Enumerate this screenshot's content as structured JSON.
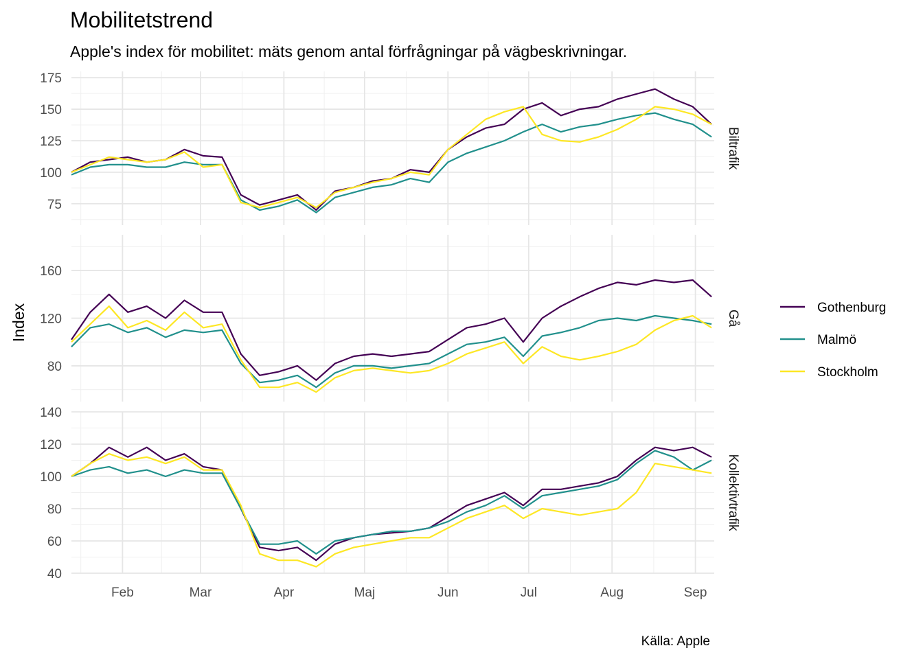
{
  "chart_data": {
    "type": "line",
    "title": "Mobilitetstrend",
    "subtitle": "Apple's index för mobilitet: mäts genom antal förfrågningar på vägbeskrivningar.",
    "ylabel": "Index",
    "xlabel": "",
    "caption": "Källa: Apple",
    "x_range": [
      "2020-01-13",
      "2020-09-08"
    ],
    "x_ticks": [
      {
        "date": "2020-02-01",
        "label": "Feb"
      },
      {
        "date": "2020-03-01",
        "label": "Mar"
      },
      {
        "date": "2020-04-01",
        "label": "Apr"
      },
      {
        "date": "2020-05-01",
        "label": "Maj"
      },
      {
        "date": "2020-06-01",
        "label": "Jun"
      },
      {
        "date": "2020-07-01",
        "label": "Jul"
      },
      {
        "date": "2020-08-01",
        "label": "Aug"
      },
      {
        "date": "2020-09-01",
        "label": "Sep"
      }
    ],
    "legend": {
      "position": "right",
      "entries": [
        {
          "name": "Gothenburg",
          "color": "#440154"
        },
        {
          "name": "Malmö",
          "color": "#21908C"
        },
        {
          "name": "Stockholm",
          "color": "#FDE725"
        }
      ]
    },
    "grid": true,
    "facets": [
      {
        "label": "Biltrafik",
        "ylim": [
          58,
          180
        ],
        "yticks": [
          75,
          100,
          125,
          150,
          175
        ],
        "series": [
          {
            "name": "Gothenburg",
            "color": "#440154",
            "x": [
              "2020-01-13",
              "2020-01-20",
              "2020-01-27",
              "2020-02-03",
              "2020-02-10",
              "2020-02-17",
              "2020-02-24",
              "2020-03-02",
              "2020-03-09",
              "2020-03-16",
              "2020-03-23",
              "2020-03-30",
              "2020-04-06",
              "2020-04-13",
              "2020-04-20",
              "2020-04-27",
              "2020-05-04",
              "2020-05-11",
              "2020-05-18",
              "2020-05-25",
              "2020-06-01",
              "2020-06-08",
              "2020-06-15",
              "2020-06-22",
              "2020-06-29",
              "2020-07-06",
              "2020-07-13",
              "2020-07-20",
              "2020-07-27",
              "2020-08-03",
              "2020-08-10",
              "2020-08-17",
              "2020-08-24",
              "2020-08-31",
              "2020-09-07"
            ],
            "y": [
              100,
              108,
              110,
              112,
              108,
              110,
              118,
              113,
              112,
              82,
              74,
              78,
              82,
              70,
              85,
              88,
              93,
              95,
              102,
              100,
              118,
              128,
              135,
              138,
              150,
              155,
              145,
              150,
              152,
              158,
              162,
              166,
              158,
              152,
              138
            ]
          },
          {
            "name": "Malmö",
            "color": "#21908C",
            "x": [
              "2020-01-13",
              "2020-01-20",
              "2020-01-27",
              "2020-02-03",
              "2020-02-10",
              "2020-02-17",
              "2020-02-24",
              "2020-03-02",
              "2020-03-09",
              "2020-03-16",
              "2020-03-23",
              "2020-03-30",
              "2020-04-06",
              "2020-04-13",
              "2020-04-20",
              "2020-04-27",
              "2020-05-04",
              "2020-05-11",
              "2020-05-18",
              "2020-05-25",
              "2020-06-01",
              "2020-06-08",
              "2020-06-15",
              "2020-06-22",
              "2020-06-29",
              "2020-07-06",
              "2020-07-13",
              "2020-07-20",
              "2020-07-27",
              "2020-08-03",
              "2020-08-10",
              "2020-08-17",
              "2020-08-24",
              "2020-08-31",
              "2020-09-07"
            ],
            "y": [
              98,
              104,
              106,
              106,
              104,
              104,
              108,
              106,
              106,
              78,
              70,
              73,
              78,
              68,
              80,
              84,
              88,
              90,
              95,
              92,
              108,
              115,
              120,
              125,
              132,
              138,
              132,
              136,
              138,
              142,
              145,
              147,
              142,
              138,
              128
            ]
          },
          {
            "name": "Stockholm",
            "color": "#FDE725",
            "x": [
              "2020-01-13",
              "2020-01-20",
              "2020-01-27",
              "2020-02-03",
              "2020-02-10",
              "2020-02-17",
              "2020-02-24",
              "2020-03-02",
              "2020-03-09",
              "2020-03-16",
              "2020-03-23",
              "2020-03-30",
              "2020-04-06",
              "2020-04-13",
              "2020-04-20",
              "2020-04-27",
              "2020-05-04",
              "2020-05-11",
              "2020-05-18",
              "2020-05-25",
              "2020-06-01",
              "2020-06-08",
              "2020-06-15",
              "2020-06-22",
              "2020-06-29",
              "2020-07-06",
              "2020-07-13",
              "2020-07-20",
              "2020-07-27",
              "2020-08-03",
              "2020-08-10",
              "2020-08-17",
              "2020-08-24",
              "2020-08-31",
              "2020-09-07"
            ],
            "y": [
              100,
              106,
              112,
              110,
              108,
              110,
              116,
              104,
              106,
              76,
              72,
              76,
              80,
              72,
              84,
              88,
              92,
              95,
              100,
              98,
              118,
              130,
              142,
              148,
              152,
              130,
              125,
              124,
              128,
              134,
              142,
              152,
              150,
              146,
              138
            ]
          }
        ]
      },
      {
        "label": "Gå",
        "ylim": [
          50,
          190
        ],
        "yticks": [
          80,
          120,
          160
        ],
        "series": [
          {
            "name": "Gothenburg",
            "color": "#440154",
            "x": [
              "2020-01-13",
              "2020-01-20",
              "2020-01-27",
              "2020-02-03",
              "2020-02-10",
              "2020-02-17",
              "2020-02-24",
              "2020-03-02",
              "2020-03-09",
              "2020-03-16",
              "2020-03-23",
              "2020-03-30",
              "2020-04-06",
              "2020-04-13",
              "2020-04-20",
              "2020-04-27",
              "2020-05-04",
              "2020-05-11",
              "2020-05-18",
              "2020-05-25",
              "2020-06-01",
              "2020-06-08",
              "2020-06-15",
              "2020-06-22",
              "2020-06-29",
              "2020-07-06",
              "2020-07-13",
              "2020-07-20",
              "2020-07-27",
              "2020-08-03",
              "2020-08-10",
              "2020-08-17",
              "2020-08-24",
              "2020-08-31",
              "2020-09-07"
            ],
            "y": [
              102,
              125,
              140,
              125,
              130,
              120,
              135,
              125,
              125,
              90,
              72,
              75,
              80,
              68,
              82,
              88,
              90,
              88,
              90,
              92,
              102,
              112,
              115,
              120,
              100,
              120,
              130,
              138,
              145,
              150,
              148,
              152,
              150,
              152,
              138
            ]
          },
          {
            "name": "Malmö",
            "color": "#21908C",
            "x": [
              "2020-01-13",
              "2020-01-20",
              "2020-01-27",
              "2020-02-03",
              "2020-02-10",
              "2020-02-17",
              "2020-02-24",
              "2020-03-02",
              "2020-03-09",
              "2020-03-16",
              "2020-03-23",
              "2020-03-30",
              "2020-04-06",
              "2020-04-13",
              "2020-04-20",
              "2020-04-27",
              "2020-05-04",
              "2020-05-11",
              "2020-05-18",
              "2020-05-25",
              "2020-06-01",
              "2020-06-08",
              "2020-06-15",
              "2020-06-22",
              "2020-06-29",
              "2020-07-06",
              "2020-07-13",
              "2020-07-20",
              "2020-07-27",
              "2020-08-03",
              "2020-08-10",
              "2020-08-17",
              "2020-08-24",
              "2020-08-31",
              "2020-09-07"
            ],
            "y": [
              96,
              112,
              115,
              108,
              112,
              104,
              110,
              108,
              110,
              82,
              66,
              68,
              72,
              62,
              74,
              80,
              80,
              78,
              80,
              82,
              90,
              98,
              100,
              104,
              88,
              105,
              108,
              112,
              118,
              120,
              118,
              122,
              120,
              118,
              115
            ]
          },
          {
            "name": "Stockholm",
            "color": "#FDE725",
            "x": [
              "2020-01-13",
              "2020-01-20",
              "2020-01-27",
              "2020-02-03",
              "2020-02-10",
              "2020-02-17",
              "2020-02-24",
              "2020-03-02",
              "2020-03-09",
              "2020-03-16",
              "2020-03-23",
              "2020-03-30",
              "2020-04-06",
              "2020-04-13",
              "2020-04-20",
              "2020-04-27",
              "2020-05-04",
              "2020-05-11",
              "2020-05-18",
              "2020-05-25",
              "2020-06-01",
              "2020-06-08",
              "2020-06-15",
              "2020-06-22",
              "2020-06-29",
              "2020-07-06",
              "2020-07-13",
              "2020-07-20",
              "2020-07-27",
              "2020-08-03",
              "2020-08-10",
              "2020-08-17",
              "2020-08-24",
              "2020-08-31",
              "2020-09-07"
            ],
            "y": [
              100,
              115,
              130,
              112,
              118,
              110,
              125,
              112,
              115,
              85,
              62,
              62,
              66,
              58,
              70,
              76,
              78,
              76,
              74,
              76,
              82,
              90,
              95,
              100,
              82,
              96,
              88,
              85,
              88,
              92,
              98,
              110,
              118,
              122,
              112
            ]
          }
        ]
      },
      {
        "label": "Kollektivtrafik",
        "ylim": [
          40,
          140
        ],
        "yticks": [
          40,
          60,
          80,
          100,
          120,
          140
        ],
        "series": [
          {
            "name": "Gothenburg",
            "color": "#440154",
            "x": [
              "2020-01-13",
              "2020-01-20",
              "2020-01-27",
              "2020-02-03",
              "2020-02-10",
              "2020-02-17",
              "2020-02-24",
              "2020-03-02",
              "2020-03-09",
              "2020-03-16",
              "2020-03-23",
              "2020-03-30",
              "2020-04-06",
              "2020-04-13",
              "2020-04-20",
              "2020-04-27",
              "2020-05-04",
              "2020-05-11",
              "2020-05-18",
              "2020-05-25",
              "2020-06-01",
              "2020-06-08",
              "2020-06-15",
              "2020-06-22",
              "2020-06-29",
              "2020-07-06",
              "2020-07-13",
              "2020-07-20",
              "2020-07-27",
              "2020-08-03",
              "2020-08-10",
              "2020-08-17",
              "2020-08-24",
              "2020-08-31",
              "2020-09-07"
            ],
            "y": [
              100,
              108,
              118,
              112,
              118,
              110,
              114,
              106,
              104,
              80,
              56,
              54,
              56,
              48,
              58,
              62,
              64,
              65,
              66,
              68,
              75,
              82,
              86,
              90,
              82,
              92,
              92,
              94,
              96,
              100,
              110,
              118,
              116,
              118,
              112
            ]
          },
          {
            "name": "Malmö",
            "color": "#21908C",
            "x": [
              "2020-01-13",
              "2020-01-20",
              "2020-01-27",
              "2020-02-03",
              "2020-02-10",
              "2020-02-17",
              "2020-02-24",
              "2020-03-02",
              "2020-03-09",
              "2020-03-16",
              "2020-03-23",
              "2020-03-30",
              "2020-04-06",
              "2020-04-13",
              "2020-04-20",
              "2020-04-27",
              "2020-05-04",
              "2020-05-11",
              "2020-05-18",
              "2020-05-25",
              "2020-06-01",
              "2020-06-08",
              "2020-06-15",
              "2020-06-22",
              "2020-06-29",
              "2020-07-06",
              "2020-07-13",
              "2020-07-20",
              "2020-07-27",
              "2020-08-03",
              "2020-08-10",
              "2020-08-17",
              "2020-08-24",
              "2020-08-31",
              "2020-09-07"
            ],
            "y": [
              100,
              104,
              106,
              102,
              104,
              100,
              104,
              102,
              102,
              80,
              58,
              58,
              60,
              52,
              60,
              62,
              64,
              66,
              66,
              68,
              72,
              78,
              82,
              88,
              80,
              88,
              90,
              92,
              94,
              98,
              108,
              116,
              112,
              104,
              110
            ]
          },
          {
            "name": "Stockholm",
            "color": "#FDE725",
            "x": [
              "2020-01-13",
              "2020-01-20",
              "2020-01-27",
              "2020-02-03",
              "2020-02-10",
              "2020-02-17",
              "2020-02-24",
              "2020-03-02",
              "2020-03-09",
              "2020-03-16",
              "2020-03-23",
              "2020-03-30",
              "2020-04-06",
              "2020-04-13",
              "2020-04-20",
              "2020-04-27",
              "2020-05-04",
              "2020-05-11",
              "2020-05-18",
              "2020-05-25",
              "2020-06-01",
              "2020-06-08",
              "2020-06-15",
              "2020-06-22",
              "2020-06-29",
              "2020-07-06",
              "2020-07-13",
              "2020-07-20",
              "2020-07-27",
              "2020-08-03",
              "2020-08-10",
              "2020-08-17",
              "2020-08-24",
              "2020-08-31",
              "2020-09-07"
            ],
            "y": [
              100,
              108,
              114,
              110,
              112,
              108,
              112,
              104,
              104,
              82,
              52,
              48,
              48,
              44,
              52,
              56,
              58,
              60,
              62,
              62,
              68,
              74,
              78,
              82,
              74,
              80,
              78,
              76,
              78,
              80,
              90,
              108,
              106,
              104,
              102
            ]
          }
        ]
      }
    ]
  }
}
